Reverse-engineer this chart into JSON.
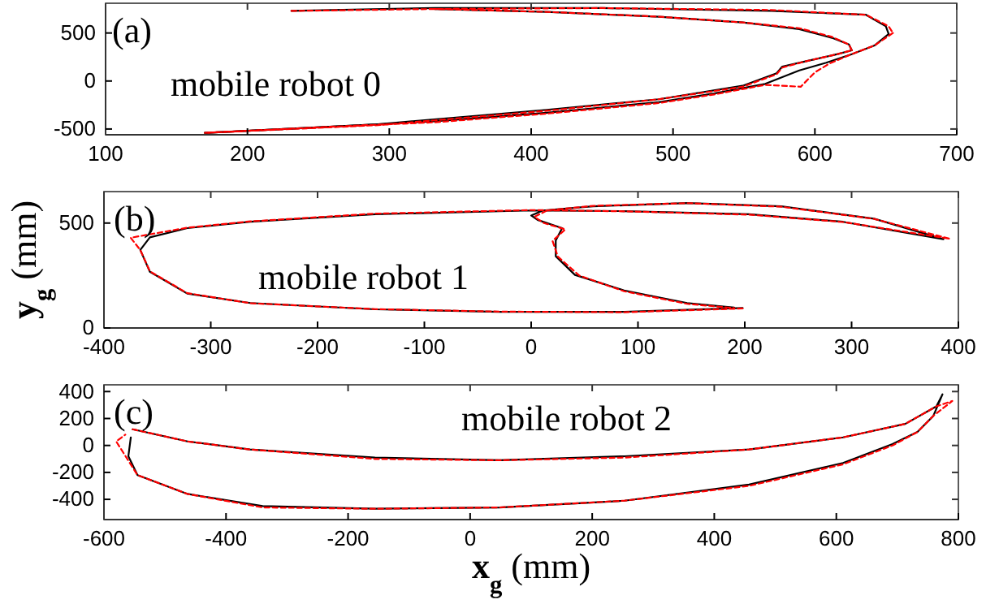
{
  "chart_data": [
    {
      "type": "line",
      "xlim": [
        100,
        700
      ],
      "xticks": [
        100,
        200,
        300,
        400,
        500,
        600,
        700
      ],
      "ylim": [
        -560,
        810
      ],
      "yticks": [
        -500,
        0,
        500
      ],
      "annotations": [
        "(a)",
        "mobile robot 0"
      ],
      "series": [
        {
          "color": "#000000",
          "line_style": "solid",
          "x": [
            231,
            332,
            450,
            569,
            636,
            650,
            652
          ],
          "values": [
            730,
            760,
            760,
            730,
            690,
            570,
            490
          ]
        },
        {
          "color": "#000000",
          "line_style": "solid",
          "x": [
            652,
            642,
            626,
            608,
            589,
            565,
            529,
            490,
            411,
            332,
            253,
            170
          ],
          "values": [
            490,
            370,
            280,
            190,
            110,
            -30,
            -130,
            -220,
            -330,
            -420,
            -480,
            -540
          ]
        },
        {
          "color": "#000000",
          "line_style": "solid",
          "x": [
            170,
            292,
            411,
            490,
            549,
            573,
            577,
            592,
            616,
            626
          ],
          "values": [
            -540,
            -450,
            -300,
            -190,
            -50,
            80,
            150,
            200,
            280,
            320
          ]
        },
        {
          "color": "#000000",
          "line_style": "solid",
          "x": [
            626,
            624,
            612,
            589,
            549,
            490,
            411,
            332
          ],
          "values": [
            320,
            380,
            450,
            540,
            610,
            670,
            720,
            750
          ]
        },
        {
          "color": "#ff0000",
          "line_style": "dashed",
          "x": [
            231,
            332,
            450,
            569,
            636,
            652,
            655
          ],
          "values": [
            730,
            750,
            760,
            740,
            690,
            570,
            500
          ]
        },
        {
          "color": "#ff0000",
          "line_style": "dashed",
          "x": [
            655,
            642,
            626,
            610,
            600,
            590,
            565,
            529,
            490,
            411,
            332,
            253,
            170
          ],
          "values": [
            500,
            370,
            280,
            180,
            90,
            -60,
            -40,
            -140,
            -230,
            -340,
            -430,
            -480,
            -540
          ]
        },
        {
          "color": "#ff0000",
          "line_style": "dashed",
          "x": [
            170,
            292,
            411,
            490,
            549,
            573,
            577,
            592,
            616,
            626
          ],
          "values": [
            -540,
            -460,
            -310,
            -190,
            -60,
            70,
            140,
            200,
            280,
            320
          ]
        },
        {
          "color": "#ff0000",
          "line_style": "dashed",
          "x": [
            626,
            624,
            612,
            589,
            549,
            490,
            411,
            332
          ],
          "values": [
            320,
            380,
            460,
            550,
            610,
            670,
            720,
            750
          ]
        }
      ]
    },
    {
      "type": "line",
      "xlim": [
        -400,
        400
      ],
      "xticks": [
        -400,
        -300,
        -200,
        -100,
        0,
        100,
        200,
        300,
        400
      ],
      "ylim": [
        0,
        650
      ],
      "yticks": [
        0,
        500
      ],
      "ylabel": "y$_{g}$ (mm)",
      "annotations": [
        "(b)",
        "mobile robot 1"
      ],
      "series": [
        {
          "color": "#000000",
          "line_style": "solid",
          "x": [
            198,
            87,
            -30,
            -146,
            -263,
            -322,
            -357,
            -366,
            -357,
            -322,
            -263,
            -146,
            0,
            87,
            204,
            292,
            386,
            321,
            234,
            146,
            58,
            11,
            0,
            6,
            29,
            23,
            23,
            41,
            87,
            146,
            190
          ],
          "values": [
            95,
            77,
            77,
            89,
            119,
            164,
            268,
            372,
            432,
            476,
            506,
            542,
            560,
            557,
            542,
            506,
            423,
            521,
            580,
            595,
            580,
            560,
            536,
            515,
            476,
            417,
            342,
            253,
            179,
            119,
            97
          ]
        },
        {
          "color": "#ff0000",
          "line_style": "dashed",
          "x": [
            198,
            87,
            -30,
            -146,
            -263,
            -322,
            -357,
            -366,
            -375,
            -322,
            -263,
            -146,
            0,
            87,
            204,
            292,
            392,
            321,
            234,
            146,
            58,
            15,
            3,
            12,
            32,
            20,
            25,
            45,
            87,
            146,
            190
          ],
          "values": [
            93,
            75,
            78,
            90,
            118,
            166,
            270,
            372,
            430,
            478,
            508,
            545,
            562,
            556,
            540,
            505,
            425,
            520,
            578,
            595,
            582,
            560,
            530,
            500,
            470,
            415,
            340,
            250,
            175,
            115,
            95
          ]
        }
      ]
    },
    {
      "type": "line",
      "xlim": [
        -600,
        800
      ],
      "xticks": [
        -600,
        -400,
        -200,
        0,
        200,
        400,
        600,
        800
      ],
      "ylim": [
        -550,
        450
      ],
      "yticks": [
        -400,
        -200,
        0,
        200,
        400
      ],
      "xlabel": "x$_{g}$ (mm)",
      "annotations": [
        "(c)",
        "mobile robot 2"
      ],
      "series": [
        {
          "color": "#000000",
          "line_style": "solid",
          "x": [
            -553,
            -463,
            -361,
            -156,
            48,
            253,
            457,
            611,
            713,
            764,
            774,
            759,
            733,
            692,
            611,
            457,
            253,
            48,
            -156,
            -340,
            -463,
            -545,
            -560,
            -556
          ],
          "values": [
            120,
            30,
            -30,
            -90,
            -110,
            -80,
            -30,
            60,
            160,
            290,
            380,
            220,
            100,
            10,
            -130,
            -290,
            -410,
            -460,
            -470,
            -450,
            -360,
            -220,
            -80,
            60
          ]
        },
        {
          "color": "#ff0000",
          "line_style": "dashed",
          "x": [
            -553,
            -463,
            -361,
            -156,
            48,
            253,
            457,
            611,
            713,
            764,
            790,
            759,
            733,
            692,
            611,
            457,
            253,
            48,
            -156,
            -340,
            -463,
            -545,
            -580,
            -565
          ],
          "values": [
            120,
            30,
            -30,
            -100,
            -110,
            -90,
            -30,
            60,
            160,
            290,
            330,
            220,
            100,
            0,
            -140,
            -300,
            -410,
            -460,
            -470,
            -460,
            -360,
            -220,
            30,
            80
          ]
        }
      ]
    }
  ]
}
